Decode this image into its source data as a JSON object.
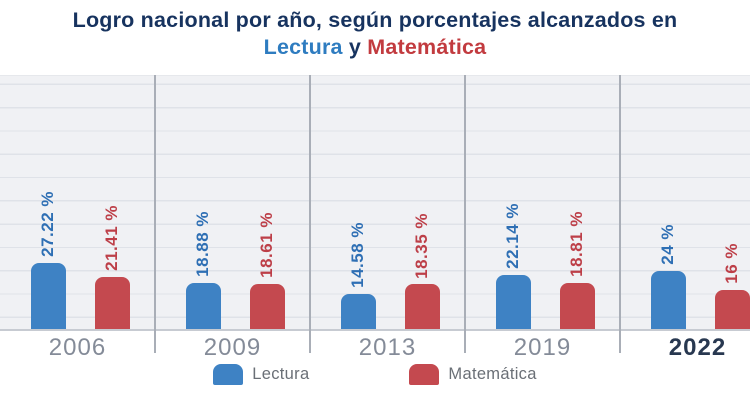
{
  "title": {
    "line1": "Logro nacional por año, según porcentajes alcanzados en",
    "line2_lectura": "Lectura",
    "line2_conj": " y ",
    "line2_matematica": "Matemática"
  },
  "colors": {
    "title_navy": "#17335f",
    "title_blue": "#2e7cc0",
    "title_red": "#c23b3f",
    "lectura_bar": "#3e82c4",
    "matematica_bar": "#c4494f",
    "lectura_label": "#2e6fb4",
    "matematica_label": "#bd3f48",
    "plot_background": "#f0f1f4",
    "gridline": "#dfe2e8",
    "separator": "#a9aeb7",
    "year_gray": "#848b98",
    "year_highlight": "#283850",
    "legend_text": "#6a6f76"
  },
  "chart_data": {
    "type": "bar",
    "title": "Logro nacional por año, según porcentajes alcanzados en Lectura y Matemática",
    "categories": [
      "2006",
      "2009",
      "2013",
      "2019",
      "2022"
    ],
    "series": [
      {
        "name": "Lectura",
        "color": "#3e82c4",
        "label_color": "#2e6fb4",
        "values": [
          27.22,
          18.88,
          14.58,
          22.14,
          24
        ],
        "labels": [
          "27.22 %",
          "18.88 %",
          "14.58 %",
          "22.14 %",
          "24 %"
        ]
      },
      {
        "name": "Matemática",
        "color": "#c4494f",
        "label_color": "#bd3f48",
        "values": [
          21.41,
          18.61,
          18.35,
          18.81,
          16
        ],
        "labels": [
          "21.41 %",
          "18.61 %",
          "18.35 %",
          "18.81 %",
          "16 %"
        ]
      }
    ],
    "xlabel": "",
    "ylabel": "",
    "ylim": [
      0,
      100
    ],
    "grid": "horizontal",
    "legend_position": "bottom",
    "highlighted_category": "2022"
  },
  "legend": {
    "items": [
      {
        "label": "Lectura",
        "color": "#3e82c4"
      },
      {
        "label": "Matemática",
        "color": "#c4494f"
      }
    ]
  }
}
